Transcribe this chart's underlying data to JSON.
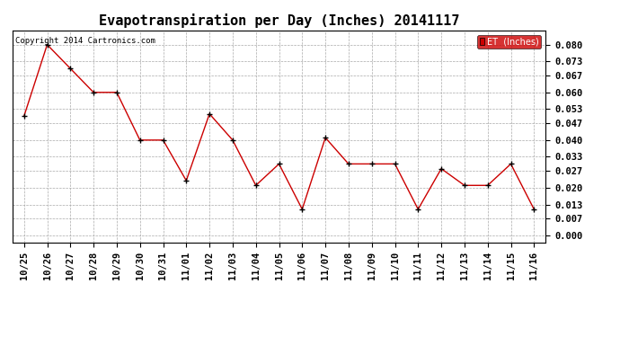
{
  "title": "Evapotranspiration per Day (Inches) 20141117",
  "copyright_text": "Copyright 2014 Cartronics.com",
  "legend_label": "ET  (Inches)",
  "x_labels": [
    "10/25",
    "10/26",
    "10/27",
    "10/28",
    "10/29",
    "10/30",
    "10/31",
    "11/01",
    "11/02",
    "11/03",
    "11/04",
    "11/05",
    "11/06",
    "11/07",
    "11/08",
    "11/09",
    "11/10",
    "11/11",
    "11/12",
    "11/13",
    "11/14",
    "11/15",
    "11/16"
  ],
  "y_values": [
    0.05,
    0.08,
    0.07,
    0.06,
    0.06,
    0.04,
    0.04,
    0.023,
    0.051,
    0.04,
    0.021,
    0.03,
    0.011,
    0.041,
    0.03,
    0.03,
    0.03,
    0.011,
    0.028,
    0.021,
    0.021,
    0.03,
    0.011
  ],
  "line_color": "#cc0000",
  "marker_color": "#000000",
  "background_color": "#ffffff",
  "grid_color": "#aaaaaa",
  "yticks": [
    0.0,
    0.007,
    0.013,
    0.02,
    0.027,
    0.033,
    0.04,
    0.047,
    0.053,
    0.06,
    0.067,
    0.073,
    0.08
  ],
  "ylim": [
    -0.003,
    0.086
  ],
  "legend_bg": "#cc0000",
  "legend_text_color": "#ffffff",
  "title_fontsize": 11,
  "tick_fontsize": 7.5,
  "copyright_fontsize": 6.5
}
